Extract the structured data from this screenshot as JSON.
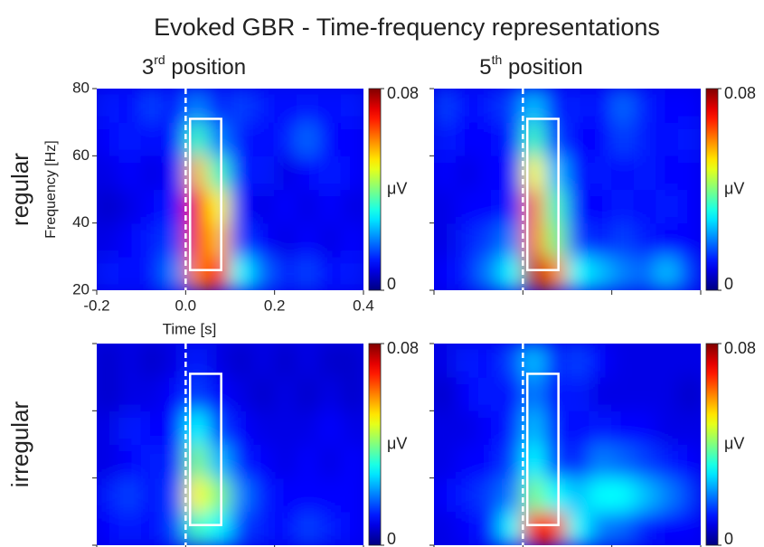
{
  "title": "Evoked GBR - Time-frequency representations",
  "chart_data": [
    {
      "type": "heatmap",
      "title_parts": [
        "3",
        "rd",
        " position"
      ],
      "row_label": "regular",
      "xlabel": "Time [s]",
      "ylabel": "Frequency [Hz]",
      "xlim": [
        -0.2,
        0.4
      ],
      "ylim": [
        20,
        80
      ],
      "xticks": [
        -0.2,
        {
          "value": 0,
          "label": "0.0"
        },
        0.2,
        0.4
      ],
      "yticks": [
        20,
        40,
        60,
        80
      ],
      "onset": 0,
      "window": {
        "x": [
          0.01,
          0.08
        ],
        "y": [
          26,
          71
        ]
      },
      "clim": [
        0,
        0.08
      ],
      "cticks": [
        0,
        0.08
      ],
      "clabel": "μV",
      "z": [
        [
          0.012,
          0.01,
          0.012,
          0.02,
          0.06,
          0.07,
          0.03,
          0.018,
          0.012,
          0.015,
          0.01,
          0.012
        ],
        [
          0.008,
          0.01,
          0.012,
          0.015,
          0.065,
          0.055,
          0.015,
          0.01,
          0.008,
          0.01,
          0.008,
          0.01
        ],
        [
          0.006,
          0.008,
          0.01,
          0.012,
          0.07,
          0.05,
          0.01,
          0.008,
          0.01,
          0.008,
          0.01,
          0.008
        ],
        [
          0.008,
          0.01,
          0.008,
          0.01,
          0.055,
          0.035,
          0.01,
          0.012,
          0.008,
          0.01,
          0.012,
          0.01
        ],
        [
          0.01,
          0.012,
          0.01,
          0.012,
          0.035,
          0.02,
          0.012,
          0.01,
          0.012,
          0.018,
          0.01,
          0.01
        ],
        [
          0.012,
          0.01,
          0.015,
          0.01,
          0.02,
          0.012,
          0.015,
          0.012,
          0.01,
          0.012,
          0.01,
          0.012
        ]
      ]
    },
    {
      "type": "heatmap",
      "title_parts": [
        "5",
        "th",
        " position"
      ],
      "xlim": [
        -0.2,
        0.4
      ],
      "ylim": [
        20,
        80
      ],
      "onset": 0,
      "window": {
        "x": [
          0.01,
          0.08
        ],
        "y": [
          26,
          71
        ]
      },
      "clim": [
        0,
        0.08
      ],
      "cticks": [
        0,
        0.08
      ],
      "clabel": "μV",
      "z": [
        [
          0.01,
          0.012,
          0.02,
          0.03,
          0.075,
          0.06,
          0.03,
          0.025,
          0.02,
          0.018,
          0.025,
          0.015
        ],
        [
          0.008,
          0.012,
          0.015,
          0.02,
          0.06,
          0.04,
          0.015,
          0.012,
          0.015,
          0.012,
          0.01,
          0.01
        ],
        [
          0.008,
          0.01,
          0.01,
          0.012,
          0.06,
          0.035,
          0.01,
          0.01,
          0.012,
          0.01,
          0.012,
          0.01
        ],
        [
          0.01,
          0.008,
          0.01,
          0.01,
          0.05,
          0.025,
          0.01,
          0.012,
          0.01,
          0.012,
          0.01,
          0.01
        ],
        [
          0.012,
          0.01,
          0.01,
          0.012,
          0.035,
          0.015,
          0.01,
          0.01,
          0.015,
          0.012,
          0.01,
          0.012
        ],
        [
          0.015,
          0.01,
          0.012,
          0.015,
          0.025,
          0.012,
          0.012,
          0.01,
          0.018,
          0.012,
          0.01,
          0.01
        ]
      ]
    },
    {
      "type": "heatmap",
      "row_label": "irregular",
      "xlim": [
        -0.2,
        0.4
      ],
      "ylim": [
        20,
        80
      ],
      "onset": 0,
      "window": {
        "x": [
          0.01,
          0.08
        ],
        "y": [
          26,
          71
        ]
      },
      "clim": [
        0,
        0.08
      ],
      "cticks": [
        0,
        0.08
      ],
      "clabel": "μV",
      "z": [
        [
          0.01,
          0.012,
          0.01,
          0.015,
          0.035,
          0.03,
          0.015,
          0.012,
          0.01,
          0.015,
          0.012,
          0.01
        ],
        [
          0.012,
          0.015,
          0.01,
          0.015,
          0.05,
          0.04,
          0.02,
          0.012,
          0.01,
          0.01,
          0.01,
          0.01
        ],
        [
          0.008,
          0.01,
          0.012,
          0.012,
          0.04,
          0.025,
          0.012,
          0.01,
          0.008,
          0.01,
          0.008,
          0.01
        ],
        [
          0.008,
          0.012,
          0.01,
          0.01,
          0.03,
          0.015,
          0.01,
          0.008,
          0.008,
          0.008,
          0.01,
          0.008
        ],
        [
          0.006,
          0.008,
          0.008,
          0.01,
          0.015,
          0.01,
          0.008,
          0.006,
          0.008,
          0.006,
          0.008,
          0.006
        ],
        [
          0.006,
          0.008,
          0.006,
          0.008,
          0.012,
          0.008,
          0.006,
          0.008,
          0.006,
          0.008,
          0.006,
          0.006
        ]
      ]
    },
    {
      "type": "heatmap",
      "xlim": [
        -0.2,
        0.4
      ],
      "ylim": [
        20,
        80
      ],
      "onset": 0,
      "window": {
        "x": [
          0.01,
          0.08
        ],
        "y": [
          26,
          71
        ]
      },
      "clim": [
        0,
        0.08
      ],
      "cticks": [
        0,
        0.08
      ],
      "clabel": "μV",
      "z": [
        [
          0.008,
          0.01,
          0.012,
          0.03,
          0.07,
          0.065,
          0.03,
          0.02,
          0.018,
          0.012,
          0.01,
          0.01
        ],
        [
          0.01,
          0.012,
          0.015,
          0.02,
          0.04,
          0.03,
          0.025,
          0.03,
          0.03,
          0.025,
          0.02,
          0.015
        ],
        [
          0.008,
          0.01,
          0.01,
          0.015,
          0.03,
          0.015,
          0.012,
          0.02,
          0.018,
          0.015,
          0.012,
          0.01
        ],
        [
          0.008,
          0.008,
          0.01,
          0.012,
          0.025,
          0.012,
          0.01,
          0.012,
          0.01,
          0.01,
          0.008,
          0.008
        ],
        [
          0.006,
          0.01,
          0.012,
          0.01,
          0.02,
          0.01,
          0.012,
          0.008,
          0.008,
          0.008,
          0.008,
          0.006
        ],
        [
          0.008,
          0.012,
          0.01,
          0.015,
          0.025,
          0.012,
          0.015,
          0.01,
          0.008,
          0.008,
          0.008,
          0.008
        ]
      ]
    }
  ]
}
